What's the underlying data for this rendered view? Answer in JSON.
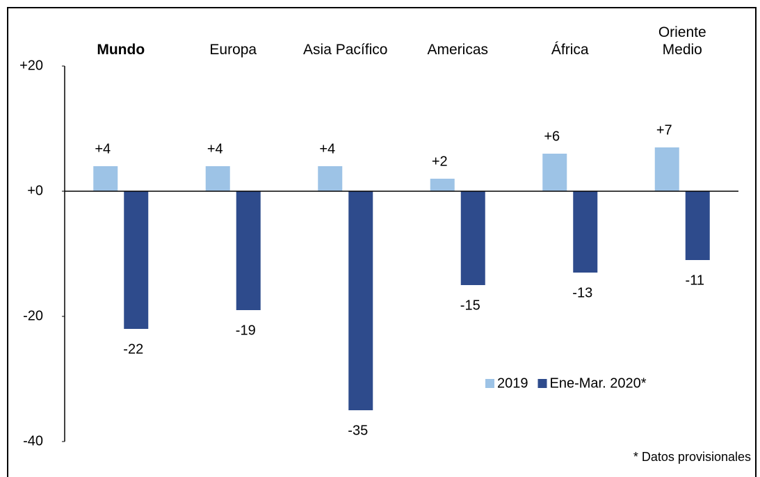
{
  "chart_data": {
    "type": "bar",
    "categories": [
      "Mundo",
      "Europa",
      "Asia Pacífico",
      "Americas",
      "África",
      "Oriente Medio"
    ],
    "series": [
      {
        "name": "2019",
        "color": "#9dc3e6",
        "values": [
          4,
          4,
          4,
          2,
          6,
          7
        ],
        "value_labels": [
          "+4",
          "+4",
          "+4",
          "+2",
          "+6",
          "+7"
        ]
      },
      {
        "name": "Ene-Mar. 2020*",
        "color": "#2e4b8c",
        "values": [
          -22,
          -19,
          -35,
          -15,
          -13,
          -11
        ]
      }
    ],
    "ylim": [
      -40,
      20
    ],
    "yticks": [
      {
        "value": 20,
        "label": "+20"
      },
      {
        "value": 0,
        "label": "+0"
      },
      {
        "value": -20,
        "label": "-20"
      },
      {
        "value": -40,
        "label": "-40"
      }
    ],
    "grid": false,
    "legend": "lower right",
    "footnote": "* Datos provisionales"
  }
}
